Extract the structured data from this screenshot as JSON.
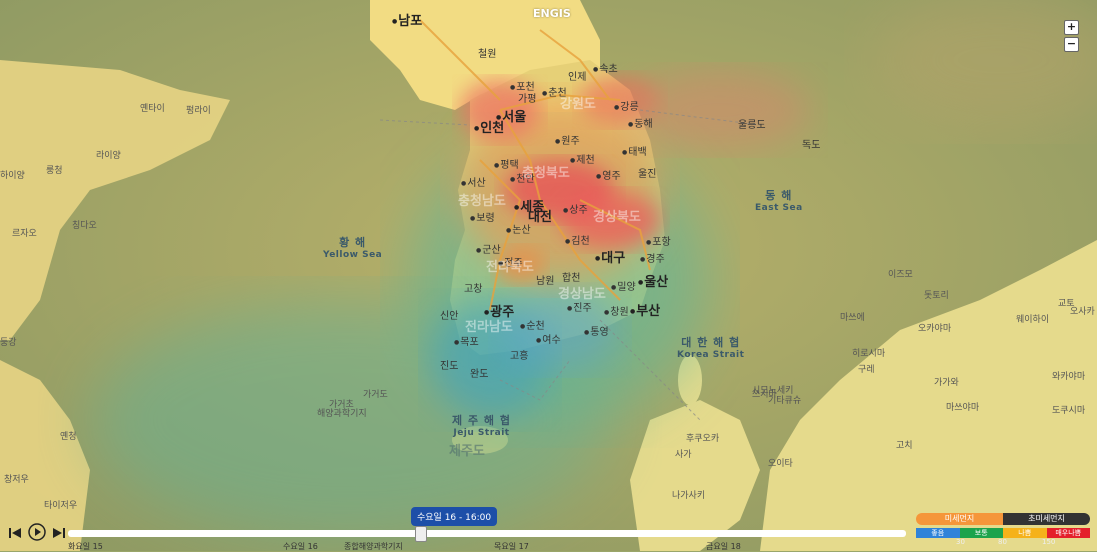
{
  "brand": "ENGIS",
  "zoom": {
    "in": "+",
    "out": "−"
  },
  "cities": {
    "nampo": "남포",
    "cheorwon": "철원",
    "pocheon": "포천",
    "chuncheon": "춘천",
    "gapyeong": "가평",
    "inje": "인제",
    "sokcho": "속초",
    "gangneung": "강릉",
    "donghae": "동해",
    "seoul": "서울",
    "incheon": "인천",
    "wonju": "원주",
    "jecheon": "제천",
    "taebaek": "태백",
    "uljin": "울진",
    "pyeongtaek": "평택",
    "cheonan": "천안",
    "seosan": "서산",
    "boryeong": "보령",
    "sejong": "세종",
    "daejeon": "대전",
    "nonsan": "논산",
    "sangju": "상주",
    "yeongju": "영주",
    "pohang": "포항",
    "gimcheon": "김천",
    "gunsan": "군산",
    "daegu": "대구",
    "gyeongju": "경주",
    "ulsan": "울산",
    "jeonju": "전주",
    "hapcheon": "합천",
    "miryang": "밀양",
    "gochang": "고창",
    "namwon": "남원",
    "changwon": "창원",
    "busan": "부산",
    "gwangju": "광주",
    "jinju": "진주",
    "tongyeong": "통영",
    "mokpo": "목포",
    "suncheon": "순천",
    "yeosu": "여수",
    "goheung": "고흥",
    "jindo": "진도",
    "wando": "완도",
    "jeju": "제주도",
    "sinan": "신안",
    "dokdo": "독도",
    "ulleung": "울릉도"
  },
  "regions": {
    "gangwon": "강원도",
    "chungnam": "충청남도",
    "chungbuk": "충청북도",
    "gyeongbuk": "경상북도",
    "jeonbuk": "전라북도",
    "gyeongnam": "경상남도",
    "jeonnam": "전라남도"
  },
  "seas": {
    "yellow_ko": "황 해",
    "yellow_en": "Yellow Sea",
    "east_ko": "동 해",
    "east_en": "East Sea",
    "korea_ko": "대 한 해 협",
    "korea_en": "Korea Strait",
    "jeju_ko": "제 주 해 협",
    "jeju_en": "Jeju Strait"
  },
  "foreign": {
    "laiyang": "라이양",
    "yantai": "옌타이",
    "penglai": "펑라이",
    "weihai": "웨이하이",
    "rongcheng": "룽청",
    "qingdao": "칭다오",
    "rizhao": "르자오",
    "haiyang": "하이양",
    "donggang": "둥강",
    "gageodo": "가거도",
    "ocean_station": "해양과학기지",
    "gageocho": "가거초",
    "fukuoka": "후쿠오카",
    "tsushima": "쓰시마",
    "matsue": "마쓰에",
    "hiroshima": "히로시마",
    "okayama": "오카야마",
    "tottori": "돗토리",
    "kure": "구레",
    "matsuyama": "마쓰야마",
    "kochi": "고치",
    "tokushima": "도쿠시마",
    "kagawa": "가가와",
    "shimonoseki": "시모노세키",
    "kitakyushu": "기타큐슈",
    "oita": "오이타",
    "saga": "사가",
    "nagasaki": "나가사키",
    "izumo": "이즈모",
    "kyoto": "교토",
    "osaka": "오사카",
    "wakayama": "와카야마",
    "yanan": "옌청",
    "changzhou": "창저우",
    "taizhou": "타이저우"
  },
  "timeline": {
    "tooltip": "수요일 16 - 16:00",
    "days": [
      "화요일 15",
      "수요일 16",
      "목요일 17",
      "금요일 18"
    ],
    "station_label": "종합해양과학기지"
  },
  "legend": {
    "tab_pm10": "미세먼지",
    "tab_pm25": "초미세먼지",
    "grades": [
      "좋음",
      "보통",
      "나쁨",
      "매우나쁨"
    ],
    "grade_colors": [
      "#2f83d9",
      "#1ca34c",
      "#f5b21a",
      "#e4202b"
    ],
    "thresholds": [
      "30",
      "80",
      "150"
    ]
  },
  "colors": {
    "land": "#e8d98c",
    "sea_base": "#a6ab6d",
    "clean": "#3aa7a0",
    "bad": "#e45a4b"
  }
}
